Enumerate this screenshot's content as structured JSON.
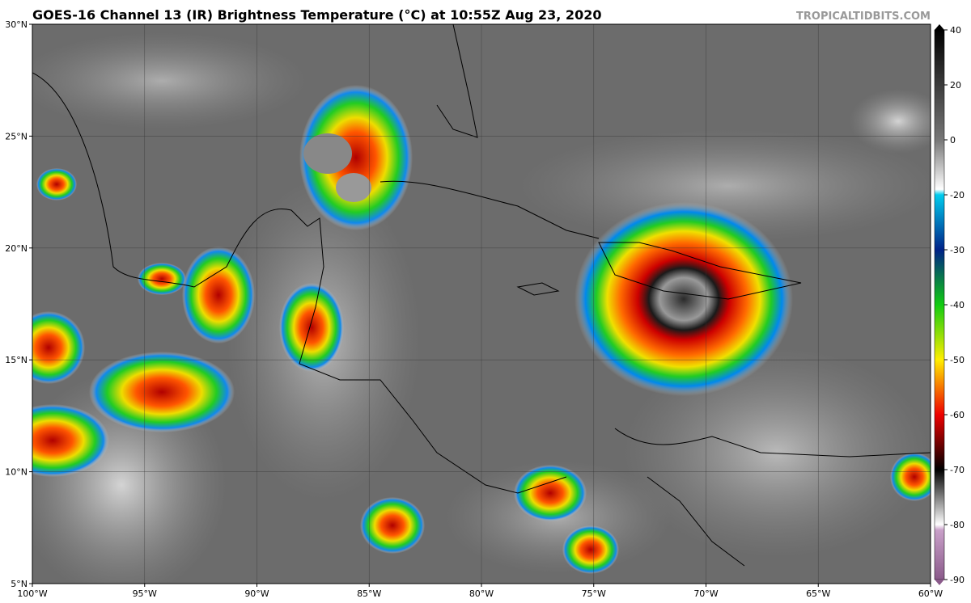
{
  "header": {
    "title": "GOES-16 Channel 13 (IR) Brightness Temperature (°C) at 10:55Z Aug 23, 2020",
    "watermark": "TROPICALTIDBITS.COM"
  },
  "map": {
    "lat_ticks": [
      {
        "value": 5,
        "label": "5°N"
      },
      {
        "value": 10,
        "label": "10°N"
      },
      {
        "value": 15,
        "label": "15°N"
      },
      {
        "value": 20,
        "label": "20°N"
      },
      {
        "value": 25,
        "label": "25°N"
      },
      {
        "value": 30,
        "label": "30°N"
      }
    ],
    "lon_ticks": [
      {
        "value": -100,
        "label": "100°W"
      },
      {
        "value": -95,
        "label": "95°W"
      },
      {
        "value": -90,
        "label": "90°W"
      },
      {
        "value": -85,
        "label": "85°W"
      },
      {
        "value": -80,
        "label": "80°W"
      },
      {
        "value": -75,
        "label": "75°W"
      },
      {
        "value": -70,
        "label": "70°W"
      },
      {
        "value": -65,
        "label": "65°W"
      },
      {
        "value": -60,
        "label": "60°W"
      }
    ]
  },
  "colorbar": {
    "ticks": [
      40,
      20,
      0,
      -20,
      -30,
      -40,
      -50,
      -60,
      -70,
      -80,
      -90
    ]
  }
}
